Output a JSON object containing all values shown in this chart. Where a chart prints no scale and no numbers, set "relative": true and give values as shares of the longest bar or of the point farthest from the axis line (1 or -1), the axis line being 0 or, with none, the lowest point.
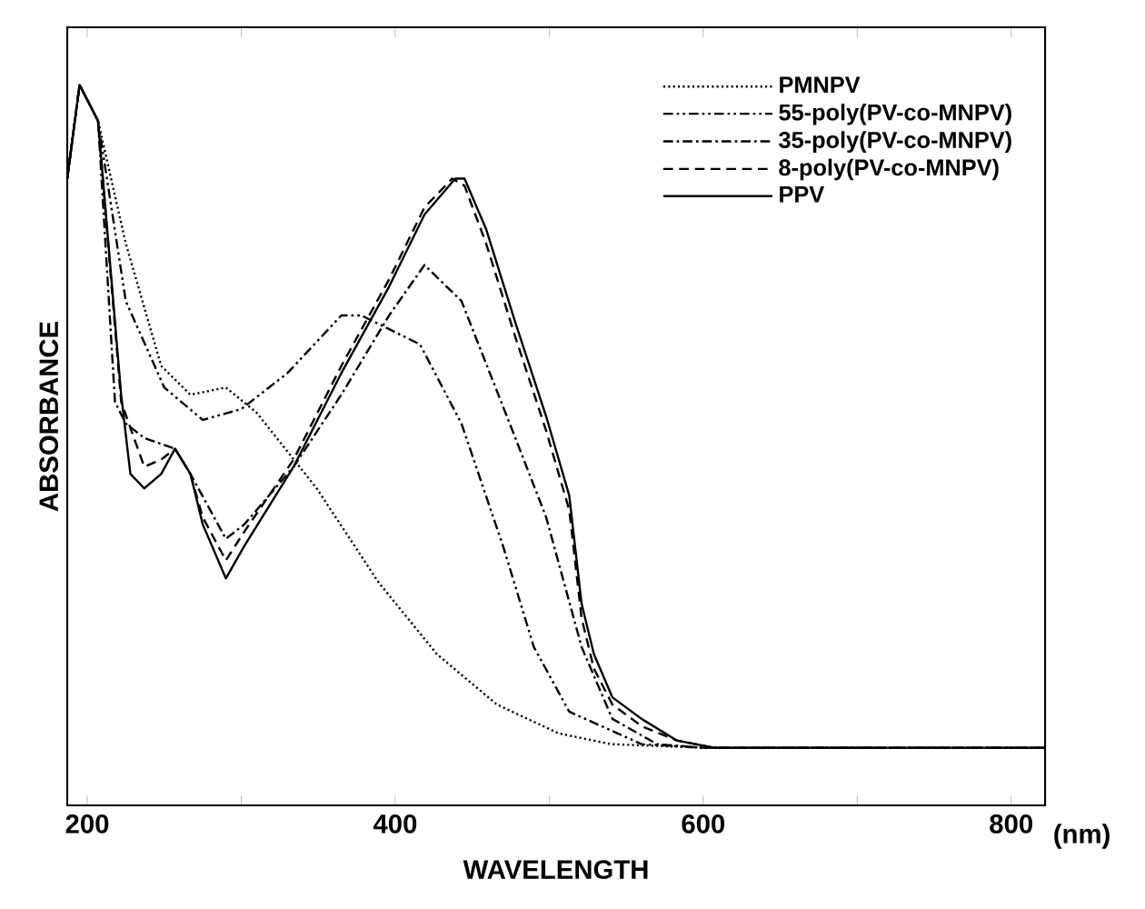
{
  "chart_data": {
    "type": "line",
    "relative": true,
    "xlabel": "WAVELENGTH",
    "ylabel": "ABSORBANCE",
    "annotations": [
      "(nm)"
    ],
    "xlim": [
      187,
      822
    ],
    "xticks": [
      200,
      {
        "value": 300,
        "label": null
      },
      400,
      {
        "value": 500,
        "label": null
      },
      600,
      {
        "value": 700,
        "label": null
      },
      800
    ],
    "legend": "top right",
    "grid": false,
    "marker": "none",
    "series": [
      {
        "name": "PMNPV",
        "color": "#000000",
        "line_style": "dotted",
        "x": [
          187,
          195,
          207,
          225,
          248,
          267,
          290,
          310,
          349,
          389,
          427,
          466,
          506,
          540,
          600,
          700,
          822
        ],
        "values": [
          0.87,
          1.0,
          0.95,
          0.78,
          0.61,
          0.57,
          0.58,
          0.545,
          0.44,
          0.31,
          0.21,
          0.14,
          0.1,
          0.085,
          0.08,
          0.08,
          0.08
        ]
      },
      {
        "name": "55-poly(PV-co-MNPV)",
        "color": "#000000",
        "line_style": "dashdotdot",
        "x": [
          187,
          195,
          207,
          225,
          250,
          275,
          300,
          330,
          365,
          378,
          416,
          443,
          470,
          490,
          513,
          560,
          600,
          822
        ],
        "values": [
          0.87,
          1.0,
          0.95,
          0.7,
          0.58,
          0.535,
          0.55,
          0.6,
          0.68,
          0.68,
          0.64,
          0.53,
          0.36,
          0.22,
          0.13,
          0.085,
          0.08,
          0.08
        ]
      },
      {
        "name": "35-poly(PV-co-MNPV)",
        "color": "#000000",
        "line_style": "dashdot",
        "x": [
          187,
          195,
          207,
          218,
          225,
          237,
          257,
          267,
          290,
          302,
          334,
          365,
          396,
          419,
          443,
          478,
          498,
          521,
          541,
          570,
          600,
          822
        ],
        "values": [
          0.87,
          1.0,
          0.95,
          0.56,
          0.53,
          0.51,
          0.495,
          0.46,
          0.37,
          0.39,
          0.47,
          0.57,
          0.68,
          0.75,
          0.7,
          0.51,
          0.4,
          0.22,
          0.12,
          0.085,
          0.08,
          0.08
        ]
      },
      {
        "name": "8-poly(PV-co-MNPV)",
        "color": "#000000",
        "line_style": "dashed",
        "x": [
          187,
          195,
          207,
          222,
          237,
          248,
          257,
          267,
          275,
          290,
          302,
          334,
          365,
          396,
          419,
          437,
          445,
          459,
          478,
          498,
          513,
          521,
          529,
          541,
          560,
          583,
          607,
          822
        ],
        "values": [
          0.87,
          1.0,
          0.95,
          0.56,
          0.47,
          0.48,
          0.495,
          0.46,
          0.4,
          0.34,
          0.38,
          0.48,
          0.61,
          0.73,
          0.83,
          0.87,
          0.86,
          0.78,
          0.65,
          0.52,
          0.41,
          0.26,
          0.19,
          0.14,
          0.11,
          0.09,
          0.08,
          0.08
        ]
      },
      {
        "name": "PPV",
        "color": "#000000",
        "line_style": "solid",
        "x": [
          187,
          195,
          207,
          222,
          228,
          237,
          248,
          257,
          267,
          275,
          290,
          302,
          334,
          365,
          396,
          419,
          439,
          445,
          459,
          478,
          498,
          513,
          521,
          529,
          541,
          560,
          583,
          607,
          822
        ],
        "values": [
          0.87,
          1.0,
          0.95,
          0.57,
          0.46,
          0.44,
          0.46,
          0.495,
          0.46,
          0.39,
          0.315,
          0.36,
          0.47,
          0.6,
          0.72,
          0.82,
          0.87,
          0.87,
          0.8,
          0.67,
          0.54,
          0.43,
          0.28,
          0.21,
          0.15,
          0.12,
          0.09,
          0.08,
          0.08
        ]
      }
    ]
  }
}
